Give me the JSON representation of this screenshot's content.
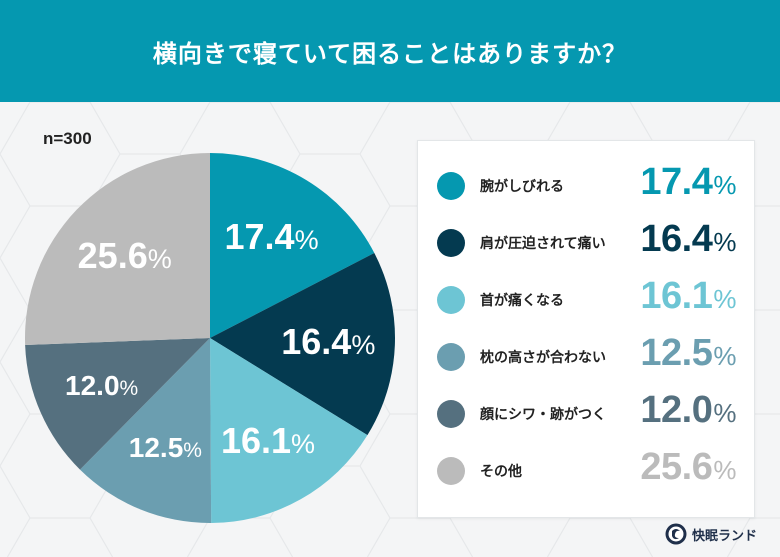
{
  "header": {
    "title": "横向きで寝ていて困ることはありますか？",
    "background": "#0598b0"
  },
  "sample_size": "n=300",
  "chart_data": {
    "type": "pie",
    "title": "横向きで寝ていて困ることはありますか？",
    "subtitle": "n=300",
    "categories": [
      "腕がしびれる",
      "肩が圧迫されて痛い",
      "首が痛くなる",
      "枕の高さが合わない",
      "顔にシワ・跡がつく",
      "その他"
    ],
    "values": [
      17.4,
      16.4,
      16.1,
      12.5,
      12.0,
      25.6
    ],
    "unit": "%",
    "colors": [
      "#0598b0",
      "#043a50",
      "#6dc5d4",
      "#6b9eb0",
      "#55707f",
      "#bbbbbb"
    ],
    "start_angle": "12 o'clock, clockwise",
    "legend_position": "right"
  },
  "pie_labels": [
    {
      "value": "17.4",
      "unit": "%"
    },
    {
      "value": "16.4",
      "unit": "%"
    },
    {
      "value": "16.1",
      "unit": "%"
    },
    {
      "value": "12.5",
      "unit": "%"
    },
    {
      "value": "12.0",
      "unit": "%"
    },
    {
      "value": "25.6",
      "unit": "%"
    }
  ],
  "legend": {
    "items": [
      {
        "label": "腕がしびれる",
        "value": "17.4",
        "unit": "%",
        "color": "#0598b0"
      },
      {
        "label": "肩が圧迫されて痛い",
        "value": "16.4",
        "unit": "%",
        "color": "#043a50"
      },
      {
        "label": "首が痛くなる",
        "value": "16.1",
        "unit": "%",
        "color": "#6dc5d4"
      },
      {
        "label": "枕の高さが合わない",
        "value": "12.5",
        "unit": "%",
        "color": "#6b9eb0"
      },
      {
        "label": "顔にシワ・跡がつく",
        "value": "12.0",
        "unit": "%",
        "color": "#55707f"
      },
      {
        "label": "その他",
        "value": "25.6",
        "unit": "%",
        "color": "#bbbbbb"
      }
    ]
  },
  "brand": {
    "name": "快眠ランド",
    "icon": "moon-logo-icon"
  }
}
